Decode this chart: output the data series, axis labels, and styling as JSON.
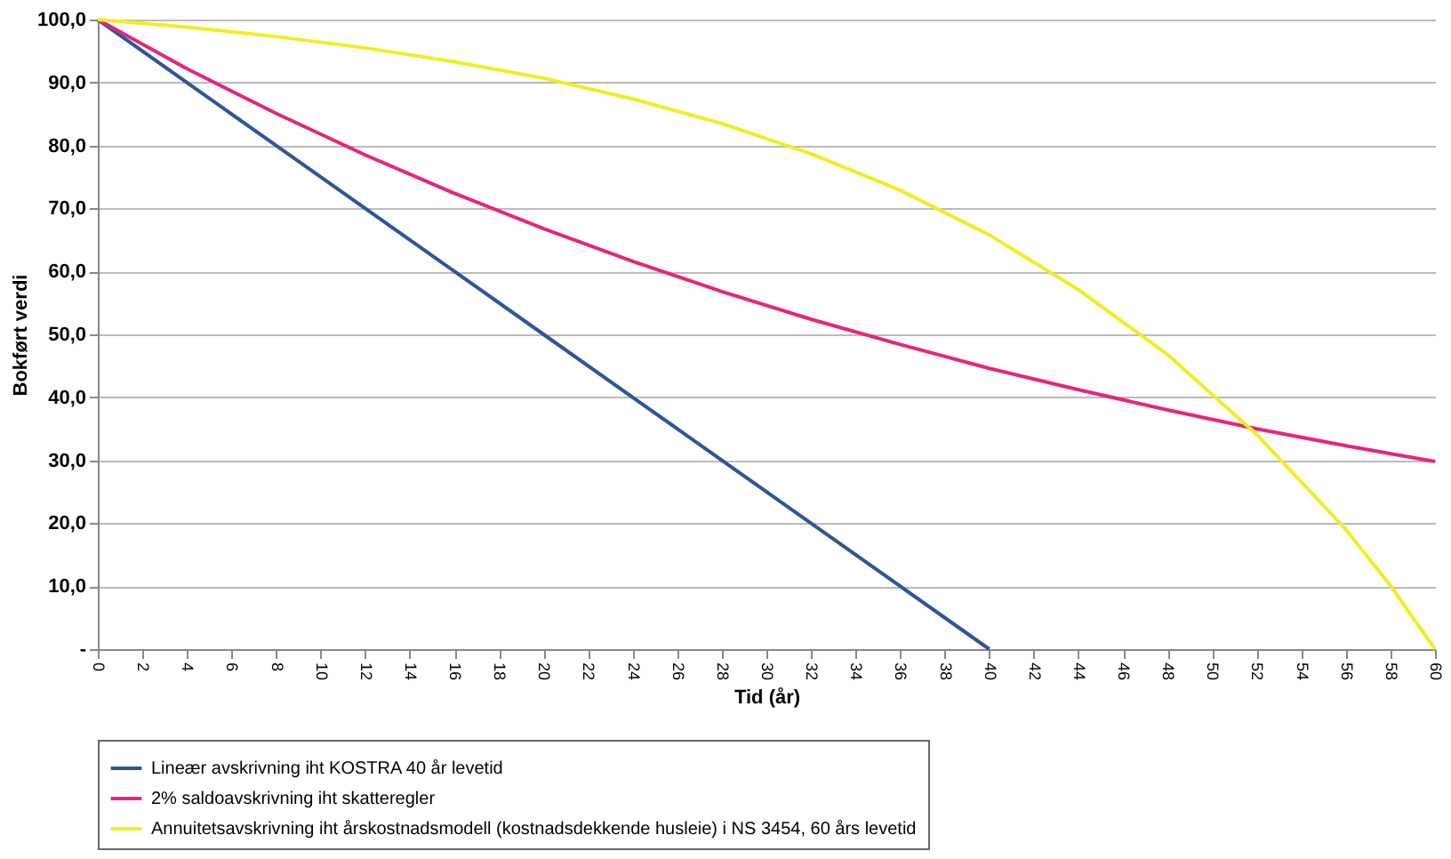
{
  "chart_data": {
    "type": "line",
    "xlabel": "Tid (år)",
    "ylabel": "Bokført verdi",
    "xlim": [
      0,
      60
    ],
    "xticks": [
      0,
      2,
      4,
      6,
      8,
      10,
      12,
      14,
      16,
      18,
      20,
      22,
      24,
      26,
      28,
      30,
      32,
      34,
      36,
      38,
      40,
      42,
      44,
      46,
      48,
      50,
      52,
      54,
      56,
      58,
      60
    ],
    "ylim": [
      0,
      100
    ],
    "yticks": [
      {
        "value": 0,
        "label": "-"
      },
      {
        "value": 10,
        "label": "10,0"
      },
      {
        "value": 20,
        "label": "20,0"
      },
      {
        "value": 30,
        "label": "30,0"
      },
      {
        "value": 40,
        "label": "40,0"
      },
      {
        "value": 50,
        "label": "50,0"
      },
      {
        "value": 60,
        "label": "60,0"
      },
      {
        "value": 70,
        "label": "70,0"
      },
      {
        "value": 80,
        "label": "80,0"
      },
      {
        "value": 90,
        "label": "90,0"
      },
      {
        "value": 100,
        "label": "100,0"
      }
    ],
    "grid": "y",
    "legend": "bottom",
    "marker": "none",
    "line_style": "solid",
    "series": [
      {
        "name": "Lineær avskrivning iht KOSTRA 40 år levetid",
        "color": "#2f5597",
        "x": [
          0,
          4,
          8,
          12,
          16,
          20,
          24,
          28,
          32,
          36,
          40
        ],
        "values": [
          100,
          90,
          80,
          70,
          60,
          50,
          40,
          30,
          20,
          10,
          0
        ]
      },
      {
        "name": "2% saldoavskrivning iht skatteregler",
        "color": "#e5267b",
        "x": [
          0,
          4,
          8,
          12,
          16,
          20,
          24,
          28,
          32,
          36,
          40,
          44,
          48,
          52,
          56,
          60
        ],
        "values": [
          100,
          92.2,
          85.1,
          78.5,
          72.4,
          66.8,
          61.6,
          56.8,
          52.4,
          48.4,
          44.6,
          41.2,
          38.0,
          35.0,
          32.3,
          29.8
        ]
      },
      {
        "name": "Annuitetsavskrivning iht årskostnadsmodell (kostnadsdekkende husleie) i NS 3454, 60 års levetid",
        "color": "#eeee22",
        "x": [
          0,
          4,
          8,
          12,
          16,
          20,
          24,
          28,
          32,
          36,
          40,
          44,
          48,
          52,
          56,
          58,
          60
        ],
        "values": [
          100,
          98.8,
          97.3,
          95.5,
          93.3,
          90.7,
          87.4,
          83.5,
          78.7,
          72.9,
          65.8,
          57.1,
          46.8,
          34.1,
          19.0,
          10.1,
          0
        ]
      }
    ]
  }
}
